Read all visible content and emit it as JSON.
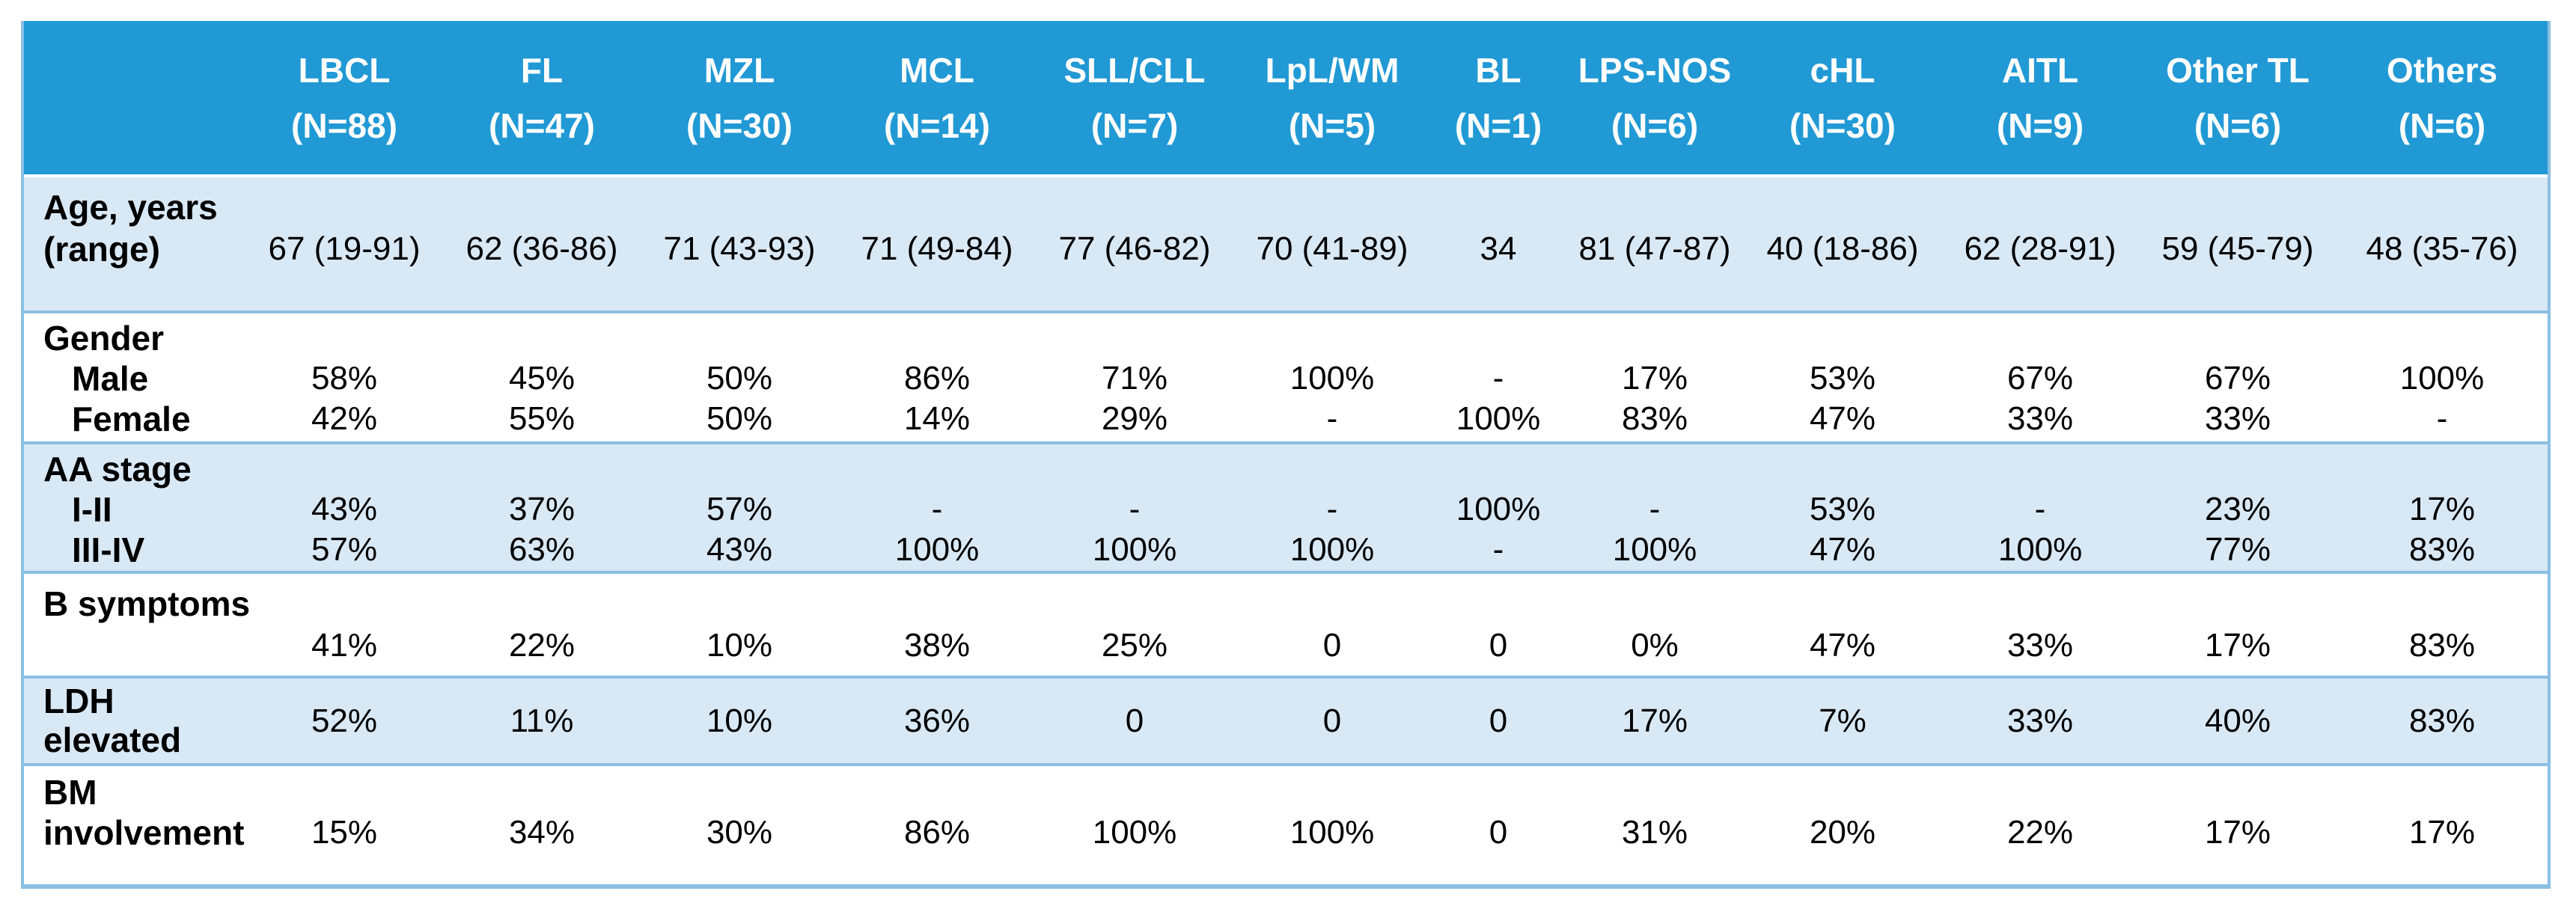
{
  "colors": {
    "header_bg": "#2199d5",
    "band_blue": "#d9e8f5",
    "band_white": "#ffffff",
    "border_blue": "#8bbfe4",
    "header_text": "#ffffff",
    "body_text": "#000000"
  },
  "table": {
    "columns": [
      {
        "label": "LBCL",
        "n": "(N=88)"
      },
      {
        "label": "FL",
        "n": "(N=47)"
      },
      {
        "label": "MZL",
        "n": "(N=30)"
      },
      {
        "label": "MCL",
        "n": "(N=14)"
      },
      {
        "label": "SLL/CLL",
        "n": "(N=7)"
      },
      {
        "label": "LpL/WM",
        "n": "(N=5)"
      },
      {
        "label": "BL",
        "n": "(N=1)"
      },
      {
        "label": "LPS-NOS",
        "n": "(N=6)"
      },
      {
        "label": "cHL",
        "n": "(N=30)"
      },
      {
        "label": "AITL",
        "n": "(N=9)"
      },
      {
        "label": "Other TL",
        "n": "(N=6)"
      },
      {
        "label": "Others",
        "n": "(N=6)"
      }
    ],
    "sections": {
      "age": {
        "label_line1": "Age, years",
        "label_line2": "(range)",
        "values": [
          "67 (19-91)",
          "62 (36-86)",
          "71 (43-93)",
          "71 (49-84)",
          "77 (46-82)",
          "70 (41-89)",
          "34",
          "81 (47-87)",
          "40 (18-86)",
          "62 (28-91)",
          "59 (45-79)",
          "48 (35-76)"
        ]
      },
      "gender": {
        "label": "Gender",
        "rows": [
          {
            "label": "Male",
            "values": [
              "58%",
              "45%",
              "50%",
              "86%",
              "71%",
              "100%",
              "-",
              "17%",
              "53%",
              "67%",
              "67%",
              "100%"
            ]
          },
          {
            "label": "Female",
            "values": [
              "42%",
              "55%",
              "50%",
              "14%",
              "29%",
              "-",
              "100%",
              "83%",
              "47%",
              "33%",
              "33%",
              "-"
            ]
          }
        ]
      },
      "aa": {
        "label": "AA stage",
        "rows": [
          {
            "label": "I-II",
            "values": [
              "43%",
              "37%",
              "57%",
              "-",
              "-",
              "-",
              "100%",
              "-",
              "53%",
              "-",
              "23%",
              "17%"
            ]
          },
          {
            "label": "III-IV",
            "values": [
              "57%",
              "63%",
              "43%",
              "100%",
              "100%",
              "100%",
              "-",
              "100%",
              "47%",
              "100%",
              "77%",
              "83%"
            ]
          }
        ]
      },
      "bsym": {
        "label": "B symptoms",
        "values": [
          "41%",
          "22%",
          "10%",
          "38%",
          "25%",
          "0",
          "0",
          "0%",
          "47%",
          "33%",
          "17%",
          "83%"
        ]
      },
      "ldh": {
        "label_line1": "LDH",
        "label_line2": "elevated",
        "values": [
          "52%",
          "11%",
          "10%",
          "36%",
          "0",
          "0",
          "0",
          "17%",
          "7%",
          "33%",
          "40%",
          "83%"
        ]
      },
      "bm": {
        "label_line1": "BM",
        "label_line2": "involvement",
        "values": [
          "15%",
          "34%",
          "30%",
          "86%",
          "100%",
          "100%",
          "0",
          "31%",
          "20%",
          "22%",
          "17%",
          "17%"
        ]
      }
    }
  }
}
